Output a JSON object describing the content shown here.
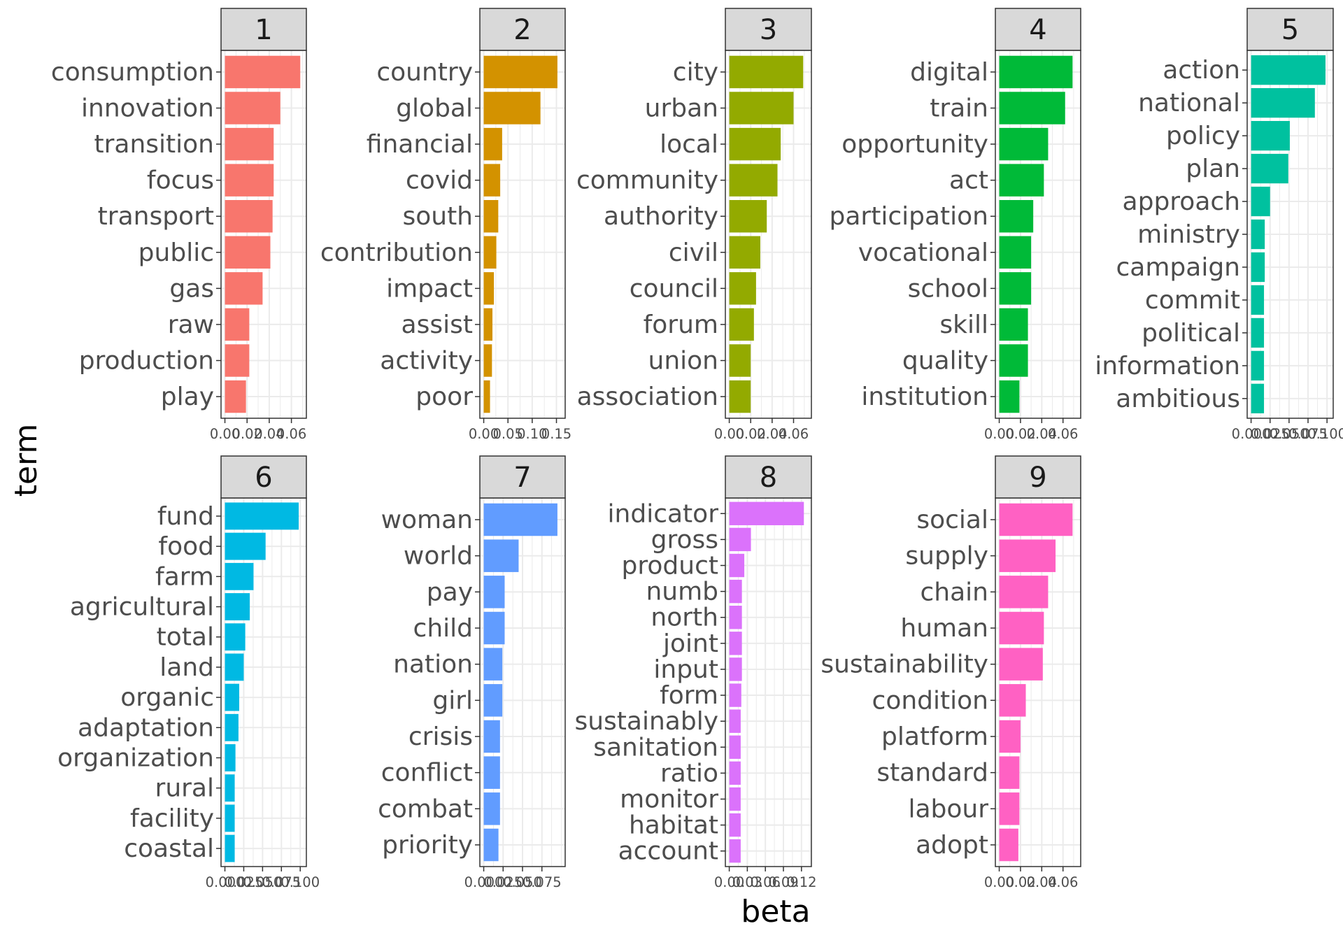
{
  "chart_data": {
    "type": "bar",
    "orientation": "horizontal",
    "faceted": true,
    "xlabel": "beta",
    "ylabel": "term",
    "legend": "none",
    "grid": true,
    "panels": [
      {
        "facet": "1",
        "color": "#F8766D",
        "xlim": [
          0,
          0.07
        ],
        "ticks": [
          0.0,
          0.02,
          0.04,
          0.06
        ],
        "tick_labels": [
          "0.00",
          "0.02",
          "0.04",
          "0.06"
        ],
        "categories": [
          "consumption",
          "innovation",
          "transition",
          "focus",
          "transport",
          "public",
          "gas",
          "raw",
          "production",
          "play"
        ],
        "values": [
          0.068,
          0.05,
          0.044,
          0.044,
          0.043,
          0.041,
          0.034,
          0.022,
          0.022,
          0.019
        ]
      },
      {
        "facet": "2",
        "color": "#D39200",
        "xlim": [
          0,
          0.16
        ],
        "ticks": [
          0.0,
          0.05,
          0.1,
          0.15
        ],
        "tick_labels": [
          "0.00",
          "0.05",
          "0.10",
          "0.15"
        ],
        "categories": [
          "country",
          "global",
          "financial",
          "covid",
          "south",
          "contribution",
          "impact",
          "assist",
          "activity",
          "poor"
        ],
        "values": [
          0.152,
          0.117,
          0.038,
          0.034,
          0.03,
          0.026,
          0.021,
          0.018,
          0.017,
          0.013
        ]
      },
      {
        "facet": "3",
        "color": "#93AA00",
        "xlim": [
          0,
          0.073
        ],
        "ticks": [
          0.0,
          0.02,
          0.04,
          0.06
        ],
        "tick_labels": [
          "0.00",
          "0.02",
          "0.04",
          "0.06"
        ],
        "categories": [
          "city",
          "urban",
          "local",
          "community",
          "authority",
          "civil",
          "council",
          "forum",
          "union",
          "association"
        ],
        "values": [
          0.069,
          0.06,
          0.048,
          0.045,
          0.035,
          0.029,
          0.025,
          0.023,
          0.02,
          0.02
        ]
      },
      {
        "facet": "4",
        "color": "#00BA38",
        "xlim": [
          0,
          0.073
        ],
        "ticks": [
          0.0,
          0.02,
          0.04,
          0.06
        ],
        "tick_labels": [
          "0.00",
          "0.02",
          "0.04",
          "0.06"
        ],
        "categories": [
          "digital",
          "train",
          "opportunity",
          "act",
          "participation",
          "vocational",
          "school",
          "skill",
          "quality",
          "institution"
        ],
        "values": [
          0.069,
          0.062,
          0.046,
          0.042,
          0.032,
          0.03,
          0.03,
          0.027,
          0.027,
          0.019
        ]
      },
      {
        "facet": "5",
        "color": "#00C19F",
        "xlim": [
          0,
          0.103
        ],
        "ticks": [
          0.0,
          0.025,
          0.05,
          0.075,
          0.1
        ],
        "tick_labels": [
          "0.000",
          "0.025",
          "0.050",
          "0.075",
          "0.100"
        ],
        "categories": [
          "action",
          "national",
          "policy",
          "plan",
          "approach",
          "ministry",
          "campaign",
          "commit",
          "political",
          "information",
          "ambitious"
        ],
        "values": [
          0.098,
          0.084,
          0.051,
          0.049,
          0.025,
          0.018,
          0.018,
          0.017,
          0.017,
          0.017,
          0.017
        ]
      },
      {
        "facet": "6",
        "color": "#00B9E3",
        "xlim": [
          0,
          0.103
        ],
        "ticks": [
          0.0,
          0.025,
          0.05,
          0.075,
          0.1
        ],
        "tick_labels": [
          "0.000",
          "0.025",
          "0.050",
          "0.075",
          "0.100"
        ],
        "categories": [
          "fund",
          "food",
          "farm",
          "agricultural",
          "total",
          "land",
          "organic",
          "adaptation",
          "organization",
          "rural",
          "facility",
          "coastal"
        ],
        "values": [
          0.098,
          0.054,
          0.038,
          0.033,
          0.027,
          0.025,
          0.019,
          0.018,
          0.014,
          0.013,
          0.013,
          0.013
        ]
      },
      {
        "facet": "7",
        "color": "#619CFF",
        "xlim": [
          0,
          0.1
        ],
        "ticks": [
          0.0,
          0.025,
          0.05,
          0.075
        ],
        "tick_labels": [
          "0.000",
          "0.025",
          "0.050",
          "0.075"
        ],
        "categories": [
          "woman",
          "world",
          "pay",
          "child",
          "nation",
          "girl",
          "crisis",
          "conflict",
          "combat",
          "priority"
        ],
        "values": [
          0.095,
          0.045,
          0.027,
          0.027,
          0.024,
          0.024,
          0.021,
          0.021,
          0.021,
          0.019
        ]
      },
      {
        "facet": "8",
        "color": "#DB72FB",
        "xlim": [
          0,
          0.13
        ],
        "ticks": [
          0.0,
          0.03,
          0.06,
          0.09,
          0.12
        ],
        "tick_labels": [
          "0.00",
          "0.03",
          "0.06",
          "0.09",
          "0.12"
        ],
        "categories": [
          "indicator",
          "gross",
          "product",
          "numb",
          "north",
          "joint",
          "input",
          "form",
          "sustainably",
          "sanitation",
          "ratio",
          "monitor",
          "habitat",
          "account"
        ],
        "values": [
          0.124,
          0.036,
          0.025,
          0.021,
          0.021,
          0.021,
          0.021,
          0.02,
          0.019,
          0.019,
          0.019,
          0.019,
          0.019,
          0.019
        ]
      },
      {
        "facet": "9",
        "color": "#FF61C3",
        "xlim": [
          0,
          0.073
        ],
        "ticks": [
          0.0,
          0.02,
          0.04,
          0.06
        ],
        "tick_labels": [
          "0.00",
          "0.02",
          "0.04",
          "0.06"
        ],
        "categories": [
          "social",
          "supply",
          "chain",
          "human",
          "sustainability",
          "condition",
          "platform",
          "standard",
          "labour",
          "adopt"
        ],
        "values": [
          0.069,
          0.053,
          0.046,
          0.042,
          0.041,
          0.025,
          0.02,
          0.019,
          0.019,
          0.018
        ]
      }
    ]
  }
}
